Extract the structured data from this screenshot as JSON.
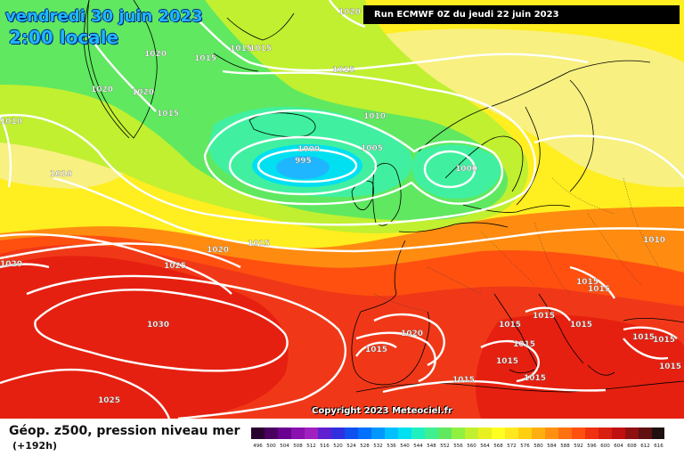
{
  "header": {
    "date": "vendredi 30 juin 2023",
    "time": "2:00 locale",
    "run": "Run ECMWF 0Z du jeudi 22 juin 2023"
  },
  "copyright": "Copyright 2023 Meteociel.fr",
  "legend": {
    "title": "Géop. z500, pression niveau mer",
    "subtitle": "(+192h)",
    "scale_values": [
      "496",
      "500",
      "504",
      "508",
      "512",
      "516",
      "520",
      "524",
      "528",
      "532",
      "536",
      "540",
      "544",
      "548",
      "552",
      "556",
      "560",
      "564",
      "568",
      "572",
      "576",
      "580",
      "584",
      "588",
      "592",
      "596",
      "600",
      "604",
      "608",
      "612",
      "616"
    ],
    "scale_colors": [
      "#2a0030",
      "#4a0060",
      "#6a0090",
      "#8a10b0",
      "#a020c0",
      "#6020d0",
      "#3030e0",
      "#1050f0",
      "#0070ff",
      "#0098ff",
      "#00c0ff",
      "#00e0f0",
      "#20f0c0",
      "#40f090",
      "#60e860",
      "#90f040",
      "#c0f030",
      "#e8f020",
      "#ffff20",
      "#ffe820",
      "#ffd010",
      "#ffb010",
      "#ff9010",
      "#ff7010",
      "#ff5010",
      "#f03010",
      "#d82010",
      "#c01010",
      "#901010",
      "#601010",
      "#201010"
    ]
  },
  "map": {
    "isobar_labels": [
      "1020",
      "1015",
      "1015",
      "1015",
      "1020",
      "1020",
      "1020",
      "1015",
      "1015",
      "1010",
      "1010",
      "1000",
      "995",
      "1005",
      "1000",
      "1010",
      "1010",
      "1015",
      "1020",
      "1025",
      "1020",
      "1030",
      "1025",
      "1015",
      "1015",
      "1015",
      "1015",
      "1015",
      "1015",
      "1015",
      "1020",
      "1015",
      "1015",
      "1015"
    ],
    "colors": {
      "deep_red": "#e62010",
      "red": "#f03818",
      "orange_red": "#ff5010",
      "orange": "#ff8c10",
      "amber": "#ffb010",
      "yellow": "#ffee20",
      "pale_yellow": "#f8f080",
      "lime": "#c0f030",
      "green": "#60e860",
      "mint": "#40f0a0",
      "cyan": "#00e0f0",
      "blue": "#1fb6ff",
      "isobar": "#ffffff",
      "coast": "#000000"
    }
  }
}
